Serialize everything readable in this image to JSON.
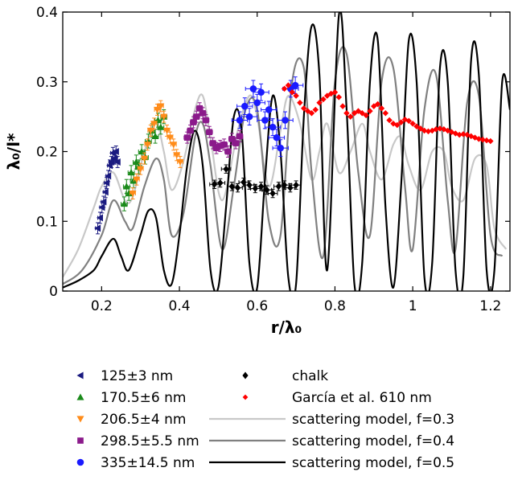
{
  "chart_data": {
    "type": "scatter",
    "xlabel": "r/λ₀",
    "ylabel": "λ₀/l*",
    "xlim": [
      0.1,
      1.25
    ],
    "ylim": [
      0,
      0.4
    ],
    "grid": false,
    "legend_position": "below-plot",
    "x_ticks": [
      {
        "value": 0.2,
        "label": "0.2"
      },
      {
        "value": 0.4,
        "label": "0.4"
      },
      {
        "value": 0.6,
        "label": "0.6"
      },
      {
        "value": 0.8,
        "label": "0.8"
      },
      {
        "value": 1.0,
        "label": "1"
      },
      {
        "value": 1.2,
        "label": "1.2"
      }
    ],
    "y_ticks": [
      {
        "value": 0,
        "label": "0"
      },
      {
        "value": 0.1,
        "label": "0.1"
      },
      {
        "value": 0.2,
        "label": "0.2"
      },
      {
        "value": 0.3,
        "label": "0.3"
      },
      {
        "value": 0.4,
        "label": "0.4"
      }
    ],
    "series": [
      {
        "name": "125±3 nm",
        "kind": "points",
        "marker": "triangle-left",
        "color": "#1a1a80",
        "xerr": 0.006,
        "yerr": 0.008,
        "x": [
          0.19,
          0.196,
          0.201,
          0.205,
          0.21,
          0.213,
          0.217,
          0.221,
          0.225,
          0.229,
          0.233,
          0.237,
          0.241
        ],
        "y": [
          0.09,
          0.105,
          0.12,
          0.128,
          0.142,
          0.155,
          0.165,
          0.18,
          0.185,
          0.198,
          0.19,
          0.2,
          0.185
        ]
      },
      {
        "name": "170.5±6 nm",
        "kind": "points",
        "marker": "triangle-up",
        "color": "#1a8a1a",
        "xerr": 0.008,
        "yerr": 0.01,
        "x": [
          0.258,
          0.264,
          0.27,
          0.276,
          0.282,
          0.289,
          0.295,
          0.303,
          0.312,
          0.32,
          0.33,
          0.338,
          0.345,
          0.352,
          0.36
        ],
        "y": [
          0.125,
          0.15,
          0.14,
          0.17,
          0.158,
          0.185,
          0.178,
          0.2,
          0.192,
          0.215,
          0.23,
          0.222,
          0.245,
          0.235,
          0.25
        ]
      },
      {
        "name": "206.5±4 nm",
        "kind": "points",
        "marker": "triangle-down",
        "color": "#ff8c1a",
        "xerr": 0.007,
        "yerr": 0.008,
        "x": [
          0.28,
          0.29,
          0.3,
          0.31,
          0.318,
          0.326,
          0.335,
          0.343,
          0.352,
          0.36,
          0.368,
          0.376,
          0.385,
          0.393,
          0.402
        ],
        "y": [
          0.14,
          0.16,
          0.175,
          0.19,
          0.21,
          0.23,
          0.24,
          0.26,
          0.265,
          0.25,
          0.23,
          0.22,
          0.21,
          0.195,
          0.185
        ]
      },
      {
        "name": "298.5±5.5 nm",
        "kind": "points",
        "marker": "square",
        "color": "#8b1a8b",
        "xerr": 0.008,
        "yerr": 0.008,
        "x": [
          0.42,
          0.428,
          0.436,
          0.444,
          0.452,
          0.46,
          0.468,
          0.477,
          0.486,
          0.495,
          0.505,
          0.515,
          0.525,
          0.535,
          0.545,
          0.555
        ],
        "y": [
          0.22,
          0.23,
          0.242,
          0.25,
          0.262,
          0.255,
          0.245,
          0.228,
          0.212,
          0.205,
          0.208,
          0.21,
          0.2,
          0.218,
          0.212,
          0.222
        ]
      },
      {
        "name": "335±14.5 nm",
        "kind": "points",
        "marker": "circle",
        "color": "#1a1aff",
        "xerr": 0.02,
        "yerr": 0.012,
        "x": [
          0.555,
          0.568,
          0.58,
          0.59,
          0.6,
          0.61,
          0.62,
          0.63,
          0.64,
          0.65,
          0.66,
          0.672,
          0.686,
          0.698
        ],
        "y": [
          0.245,
          0.265,
          0.25,
          0.29,
          0.27,
          0.285,
          0.245,
          0.26,
          0.235,
          0.22,
          0.205,
          0.245,
          0.29,
          0.295
        ]
      },
      {
        "name": "chalk",
        "kind": "points",
        "marker": "diamond",
        "color": "#000000",
        "xerr": 0.012,
        "yerr": 0.006,
        "x": [
          0.49,
          0.505,
          0.52,
          0.535,
          0.55,
          0.565,
          0.58,
          0.595,
          0.61,
          0.625,
          0.64,
          0.655,
          0.67,
          0.685,
          0.7
        ],
        "y": [
          0.153,
          0.155,
          0.175,
          0.15,
          0.148,
          0.156,
          0.152,
          0.147,
          0.15,
          0.145,
          0.14,
          0.15,
          0.152,
          0.148,
          0.152
        ]
      },
      {
        "name": "García et al. 610 nm",
        "kind": "points",
        "marker": "diamond-small",
        "color": "#ff0000",
        "x": [
          0.67,
          0.68,
          0.69,
          0.7,
          0.71,
          0.72,
          0.73,
          0.74,
          0.75,
          0.76,
          0.77,
          0.78,
          0.79,
          0.8,
          0.81,
          0.82,
          0.83,
          0.84,
          0.85,
          0.86,
          0.87,
          0.88,
          0.89,
          0.9,
          0.91,
          0.92,
          0.93,
          0.94,
          0.95,
          0.96,
          0.97,
          0.98,
          0.99,
          1.0,
          1.01,
          1.02,
          1.03,
          1.04,
          1.05,
          1.06,
          1.07,
          1.08,
          1.09,
          1.1,
          1.11,
          1.12,
          1.13,
          1.14,
          1.15,
          1.16,
          1.17,
          1.18,
          1.19,
          1.2
        ],
        "y": [
          0.29,
          0.295,
          0.285,
          0.28,
          0.27,
          0.262,
          0.258,
          0.255,
          0.26,
          0.27,
          0.275,
          0.28,
          0.283,
          0.285,
          0.278,
          0.265,
          0.255,
          0.25,
          0.255,
          0.258,
          0.255,
          0.252,
          0.258,
          0.265,
          0.268,
          0.262,
          0.255,
          0.245,
          0.24,
          0.238,
          0.242,
          0.246,
          0.244,
          0.24,
          0.236,
          0.233,
          0.23,
          0.229,
          0.23,
          0.232,
          0.233,
          0.232,
          0.23,
          0.228,
          0.226,
          0.224,
          0.225,
          0.224,
          0.222,
          0.22,
          0.218,
          0.217,
          0.216,
          0.215
        ]
      },
      {
        "name": "scattering model, f=0.3",
        "kind": "line",
        "color": "#c8c8c8",
        "x": [
          0.1,
          0.14,
          0.18,
          0.2,
          0.23,
          0.26,
          0.28,
          0.31,
          0.34,
          0.36,
          0.38,
          0.41,
          0.44,
          0.46,
          0.48,
          0.51,
          0.55,
          0.58,
          0.6,
          0.63,
          0.66,
          0.68,
          0.71,
          0.74,
          0.76,
          0.78,
          0.81,
          0.84,
          0.87,
          0.89,
          0.92,
          0.95,
          0.97,
          0.99,
          1.02,
          1.05,
          1.08,
          1.1,
          1.13,
          1.16,
          1.19,
          1.21,
          1.24
        ],
        "y": [
          0.02,
          0.06,
          0.12,
          0.15,
          0.17,
          0.13,
          0.135,
          0.2,
          0.24,
          0.2,
          0.145,
          0.185,
          0.26,
          0.28,
          0.22,
          0.13,
          0.23,
          0.28,
          0.25,
          0.15,
          0.23,
          0.28,
          0.24,
          0.16,
          0.2,
          0.24,
          0.17,
          0.2,
          0.24,
          0.2,
          0.16,
          0.21,
          0.22,
          0.18,
          0.145,
          0.2,
          0.2,
          0.15,
          0.13,
          0.19,
          0.18,
          0.09,
          0.06
        ]
      },
      {
        "name": "scattering model, f=0.4",
        "kind": "line",
        "color": "#808080",
        "x": [
          0.1,
          0.15,
          0.2,
          0.23,
          0.26,
          0.28,
          0.31,
          0.34,
          0.36,
          0.38,
          0.41,
          0.44,
          0.46,
          0.48,
          0.51,
          0.54,
          0.57,
          0.6,
          0.63,
          0.66,
          0.69,
          0.72,
          0.74,
          0.77,
          0.8,
          0.83,
          0.86,
          0.89,
          0.92,
          0.95,
          0.98,
          1.0,
          1.03,
          1.06,
          1.09,
          1.11,
          1.14,
          1.17,
          1.2,
          1.23
        ],
        "y": [
          0.01,
          0.03,
          0.08,
          0.13,
          0.1,
          0.09,
          0.15,
          0.19,
          0.16,
          0.08,
          0.11,
          0.22,
          0.24,
          0.18,
          0.06,
          0.15,
          0.26,
          0.26,
          0.1,
          0.08,
          0.3,
          0.32,
          0.17,
          0.05,
          0.3,
          0.34,
          0.17,
          0.08,
          0.3,
          0.32,
          0.15,
          0.06,
          0.26,
          0.31,
          0.13,
          0.06,
          0.27,
          0.28,
          0.08,
          0.05
        ]
      },
      {
        "name": "scattering model, f=0.5",
        "kind": "line",
        "color": "#000000",
        "x": [
          0.1,
          0.14,
          0.18,
          0.2,
          0.23,
          0.25,
          0.27,
          0.3,
          0.32,
          0.34,
          0.36,
          0.38,
          0.4,
          0.42,
          0.44,
          0.46,
          0.48,
          0.5,
          0.52,
          0.54,
          0.56,
          0.58,
          0.6,
          0.62,
          0.64,
          0.66,
          0.68,
          0.7,
          0.72,
          0.74,
          0.76,
          0.78,
          0.81,
          0.83,
          0.85,
          0.87,
          0.89,
          0.91,
          0.93,
          0.95,
          0.97,
          0.99,
          1.01,
          1.03,
          1.05,
          1.07,
          1.09,
          1.11,
          1.13,
          1.15,
          1.17,
          1.19,
          1.21,
          1.23,
          1.25
        ],
        "y": [
          0.005,
          0.015,
          0.03,
          0.05,
          0.075,
          0.05,
          0.03,
          0.08,
          0.115,
          0.105,
          0.03,
          0.01,
          0.08,
          0.18,
          0.23,
          0.18,
          0.03,
          0.005,
          0.12,
          0.25,
          0.23,
          0.04,
          0.005,
          0.16,
          0.28,
          0.2,
          0.02,
          0.01,
          0.25,
          0.38,
          0.31,
          0.03,
          0.395,
          0.26,
          0.01,
          0.04,
          0.3,
          0.36,
          0.12,
          0.005,
          0.15,
          0.36,
          0.3,
          0.02,
          0.04,
          0.32,
          0.3,
          0.03,
          0.02,
          0.33,
          0.31,
          0.03,
          0.03,
          0.3,
          0.26
        ]
      }
    ]
  }
}
